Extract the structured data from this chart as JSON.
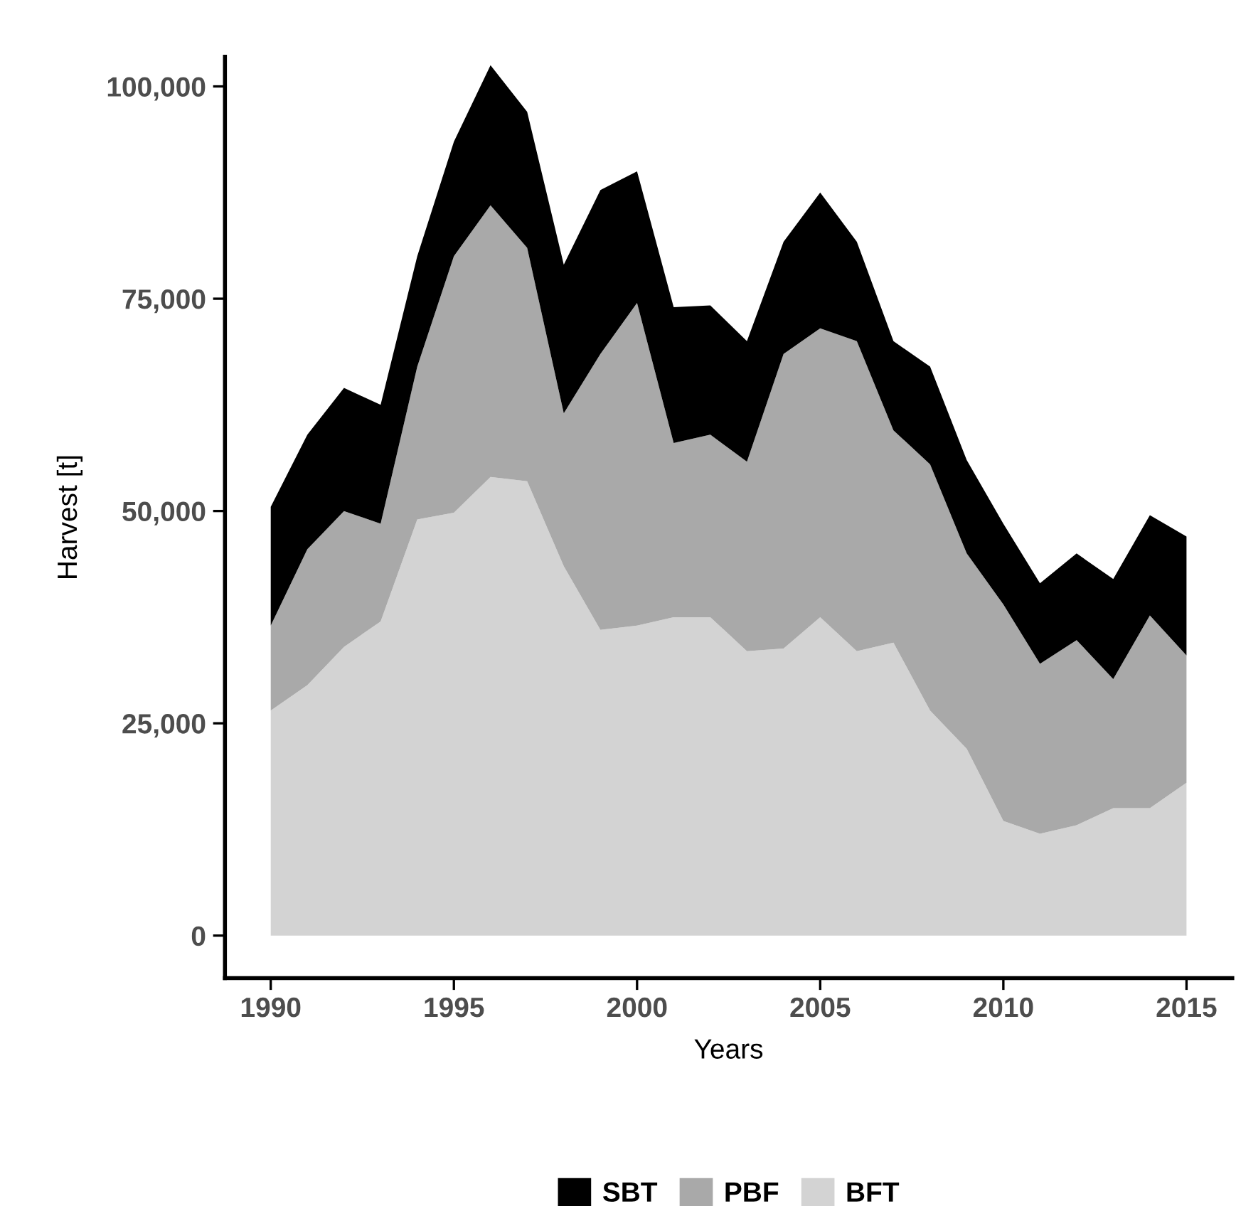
{
  "chart_data": {
    "type": "area",
    "stacked": true,
    "xlabel": "Years",
    "ylabel": "Harvest [t]",
    "x": [
      1990,
      1991,
      1992,
      1993,
      1994,
      1995,
      1996,
      1997,
      1998,
      1999,
      2000,
      2001,
      2002,
      2003,
      2004,
      2005,
      2006,
      2007,
      2008,
      2009,
      2010,
      2011,
      2012,
      2013,
      2014,
      2015
    ],
    "series": [
      {
        "name": "BFT",
        "color": "#d3d3d3",
        "values": [
          26500,
          29500,
          34000,
          37000,
          49000,
          49800,
          54000,
          53500,
          43500,
          36000,
          36500,
          37500,
          37500,
          33500,
          33800,
          37500,
          33500,
          34500,
          26500,
          22000,
          13500,
          12000,
          13000,
          15000,
          15000,
          18000
        ]
      },
      {
        "name": "PBF",
        "color": "#a9a9a9",
        "values": [
          10000,
          16000,
          16000,
          11500,
          18000,
          30200,
          32000,
          27500,
          18000,
          32500,
          38000,
          20500,
          21500,
          22300,
          34700,
          34000,
          36500,
          25000,
          29000,
          23000,
          25500,
          20000,
          21800,
          15200,
          22700,
          15000
        ]
      },
      {
        "name": "SBT",
        "color": "#000000",
        "values": [
          14000,
          13500,
          14500,
          14000,
          13000,
          13500,
          16500,
          16000,
          17500,
          19300,
          15500,
          16000,
          15200,
          14200,
          13200,
          16000,
          11700,
          10500,
          11500,
          11000,
          9500,
          9500,
          10200,
          11800,
          11800,
          14000
        ]
      }
    ],
    "xlim": [
      1988.75,
      2016.25
    ],
    "xticks": [
      1990,
      1995,
      2000,
      2005,
      2010,
      2015
    ],
    "ylim": [
      -5000,
      103500
    ],
    "yticks": [
      0,
      {
        "value": 25000,
        "label": "25,000"
      },
      {
        "value": 50000,
        "label": "50,000"
      },
      {
        "value": 75000,
        "label": "75,000"
      },
      {
        "value": 100000,
        "label": "100,000"
      }
    ],
    "grid": false,
    "legend": "bottom"
  }
}
